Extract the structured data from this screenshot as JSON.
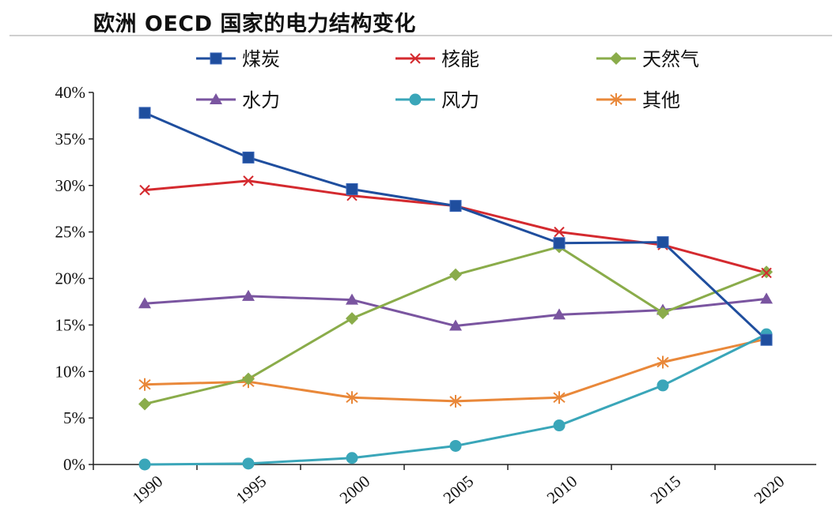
{
  "title": "欧洲 OECD 国家的电力结构变化",
  "chart_data": {
    "type": "line",
    "title": "欧洲 OECD 国家的电力结构变化",
    "xlabel": "",
    "ylabel": "",
    "x": [
      "1990",
      "1995",
      "2000",
      "2005",
      "2010",
      "2015",
      "2020"
    ],
    "ylim": [
      0,
      40
    ],
    "yticks": [
      0,
      5,
      10,
      15,
      20,
      25,
      30,
      35,
      40
    ],
    "ytick_labels": [
      "0%",
      "5%",
      "10%",
      "15%",
      "20%",
      "25%",
      "30%",
      "35%",
      "40%"
    ],
    "legend_position": "top",
    "series": [
      {
        "name": "煤炭",
        "color": "#1f4e9e",
        "marker": "square",
        "values": [
          37.8,
          33.0,
          29.6,
          27.8,
          23.8,
          23.9,
          13.4
        ]
      },
      {
        "name": "核能",
        "color": "#d42a2f",
        "marker": "x",
        "values": [
          29.5,
          30.5,
          28.9,
          27.8,
          25.0,
          23.6,
          20.6
        ]
      },
      {
        "name": "天然气",
        "color": "#8aac4a",
        "marker": "diamond",
        "values": [
          6.5,
          9.2,
          15.7,
          20.4,
          23.4,
          16.3,
          20.7
        ]
      },
      {
        "name": "水力",
        "color": "#7a55a0",
        "marker": "triangle",
        "values": [
          17.3,
          18.1,
          17.7,
          14.9,
          16.1,
          16.6,
          17.8
        ]
      },
      {
        "name": "风力",
        "color": "#3aa6b9",
        "marker": "circle",
        "values": [
          0.0,
          0.1,
          0.7,
          2.0,
          4.2,
          8.5,
          14.0
        ]
      },
      {
        "name": "其他",
        "color": "#e9883a",
        "marker": "asterisk",
        "values": [
          8.6,
          8.9,
          7.2,
          6.8,
          7.2,
          11.0,
          13.5
        ]
      }
    ]
  }
}
